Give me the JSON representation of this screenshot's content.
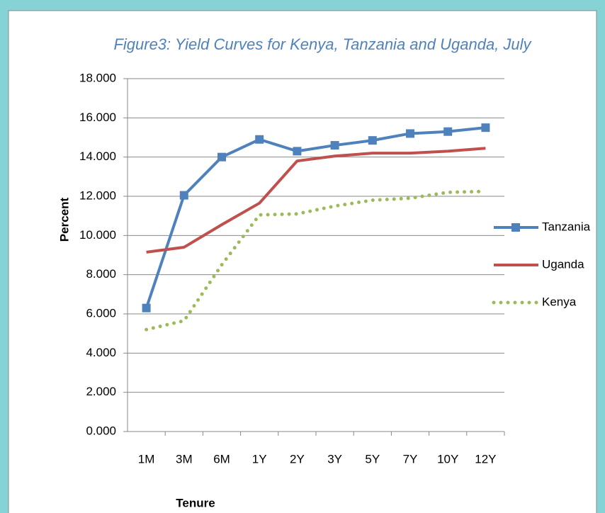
{
  "chart_data": {
    "type": "line",
    "title": "Figure3: Yield Curves for Kenya,  Tanzania  and Uganda, July",
    "y_label": "Percent",
    "x_label": "Tenure",
    "categories": [
      "1M",
      "3M",
      "6M",
      "1Y",
      "2Y",
      "3Y",
      "5Y",
      "7Y",
      "10Y",
      "12Y"
    ],
    "series": [
      {
        "name": "Tanzania",
        "color": "#4f81bd",
        "style": "solid",
        "marker": "square",
        "values": [
          6.3,
          12.05,
          14.0,
          14.9,
          14.3,
          14.6,
          14.85,
          15.2,
          15.3,
          15.5
        ]
      },
      {
        "name": "Uganda",
        "color": "#c0504d",
        "style": "solid",
        "marker": "none",
        "values": [
          9.15,
          9.4,
          10.55,
          11.65,
          13.8,
          14.05,
          14.2,
          14.2,
          14.3,
          14.45
        ]
      },
      {
        "name": "Kenya",
        "color": "#9bbb59",
        "style": "dotted",
        "marker": "none",
        "values": [
          5.2,
          5.65,
          8.5,
          11.05,
          11.1,
          11.5,
          11.8,
          11.9,
          12.2,
          12.25
        ]
      }
    ],
    "ylim": [
      0,
      18
    ],
    "yticks": [
      {
        "value": 0,
        "label": "0.000"
      },
      {
        "value": 2,
        "label": "2.000"
      },
      {
        "value": 4,
        "label": "4.000"
      },
      {
        "value": 6,
        "label": "6.000"
      },
      {
        "value": 8,
        "label": "8.000"
      },
      {
        "value": 10,
        "label": "10.000"
      },
      {
        "value": 12,
        "label": "12.000"
      },
      {
        "value": 14,
        "label": "14.000"
      },
      {
        "value": 16,
        "label": "16.000"
      },
      {
        "value": 18,
        "label": "18.000"
      }
    ],
    "grid": true,
    "legend": "right"
  }
}
